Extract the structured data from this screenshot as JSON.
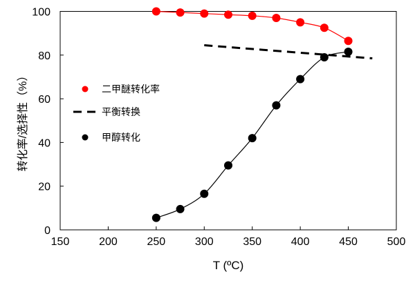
{
  "chart_data": {
    "type": "line",
    "xlabel": "T (ºC)",
    "ylabel": "转化率/选择性（%）",
    "xlim": [
      150,
      500
    ],
    "ylim": [
      0,
      100
    ],
    "xticks": [
      150,
      200,
      250,
      300,
      350,
      400,
      450,
      500
    ],
    "yticks": [
      0,
      20,
      40,
      60,
      80,
      100
    ],
    "grid": false,
    "legend_position": "left-middle",
    "series": [
      {
        "name": "二甲醚转化率",
        "color": "#ff0000",
        "style": "line-markers",
        "x": [
          250,
          275,
          300,
          325,
          350,
          375,
          400,
          425,
          450
        ],
        "y": [
          100,
          99.5,
          99,
          98.5,
          98,
          97,
          95,
          92.5,
          86.5
        ]
      },
      {
        "name": "平衡转换",
        "color": "#000000",
        "style": "dashed",
        "x": [
          300,
          475
        ],
        "y": [
          84.5,
          78.5
        ]
      },
      {
        "name": "甲醇转化",
        "color": "#000000",
        "style": "line-markers",
        "x": [
          250,
          275,
          300,
          325,
          350,
          375,
          400,
          425,
          450
        ],
        "y": [
          5.5,
          9.5,
          16.5,
          29.5,
          42,
          57,
          69,
          79,
          81.5
        ]
      }
    ]
  }
}
